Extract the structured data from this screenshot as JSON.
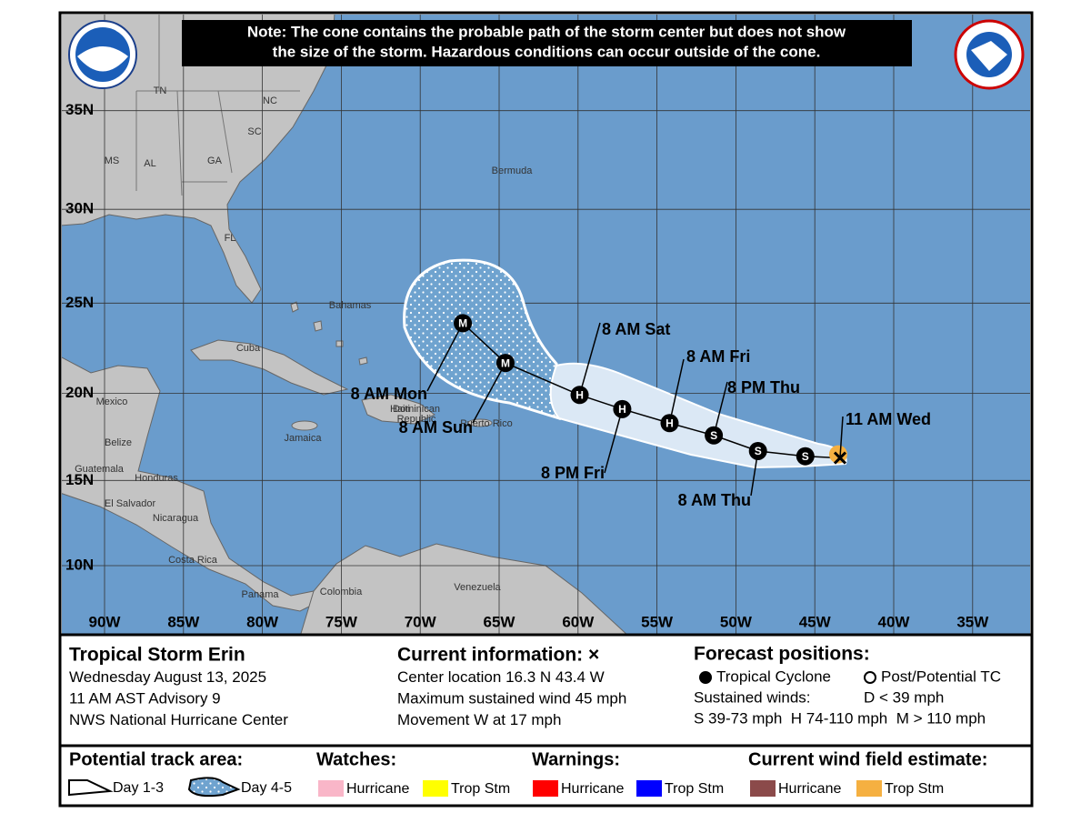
{
  "note": [
    "Note: The cone contains the probable path of the storm center but does not show",
    "the size of the storm. Hazardous conditions can occur outside of the cone."
  ],
  "map": {
    "lat_ticks": [
      {
        "value": 35,
        "label": "35N"
      },
      {
        "value": 30,
        "label": "30N"
      },
      {
        "value": 25,
        "label": "25N"
      },
      {
        "value": 20,
        "label": "20N"
      },
      {
        "value": 15,
        "label": "15N"
      },
      {
        "value": 10,
        "label": "10N"
      }
    ],
    "lon_ticks": [
      {
        "value": 90,
        "label": "90W"
      },
      {
        "value": 85,
        "label": "85W"
      },
      {
        "value": 80,
        "label": "80W"
      },
      {
        "value": 75,
        "label": "75W"
      },
      {
        "value": 70,
        "label": "70W"
      },
      {
        "value": 65,
        "label": "65W"
      },
      {
        "value": 60,
        "label": "60W"
      },
      {
        "value": 55,
        "label": "55W"
      },
      {
        "value": 50,
        "label": "50W"
      },
      {
        "value": 45,
        "label": "45W"
      },
      {
        "value": 40,
        "label": "40W"
      },
      {
        "value": 35,
        "label": "35W"
      }
    ],
    "places": [
      "TN",
      "NC",
      "SC",
      "MS",
      "AL",
      "GA",
      "FL",
      "Bermuda",
      "Bahamas",
      "Cuba",
      "Mexico",
      "Belize",
      "Jamaica",
      "Haiti",
      "Dominican",
      "Republic",
      "Puerto Rico",
      "Guatemala",
      "Honduras",
      "El Salvador",
      "Nicaragua",
      "Costa Rica",
      "Panama",
      "Colombia",
      "Venezuela"
    ]
  },
  "storm": {
    "current": {
      "label": "11 AM Wed",
      "lat": 16.3,
      "lon": 43.4
    },
    "forecast": [
      {
        "symbol": "S",
        "label": null,
        "lat": 16.4,
        "lon": 45.6
      },
      {
        "symbol": "S",
        "label": "8 AM Thu",
        "lat": 16.7,
        "lon": 48.6
      },
      {
        "symbol": "S",
        "label": "8 PM Thu",
        "lat": 17.6,
        "lon": 51.4
      },
      {
        "symbol": "H",
        "label": "8 AM Fri",
        "lat": 18.3,
        "lon": 54.2
      },
      {
        "symbol": "H",
        "label": "8 PM Fri",
        "lat": 19.1,
        "lon": 57.2
      },
      {
        "symbol": "H",
        "label": "8 AM Sat",
        "lat": 19.9,
        "lon": 59.9
      },
      {
        "symbol": "M",
        "label": "8 AM Sun",
        "lat": 21.7,
        "lon": 64.6
      },
      {
        "symbol": "M",
        "label": "8 AM Mon",
        "lat": 23.9,
        "lon": 67.3
      }
    ]
  },
  "info": {
    "storm": [
      "Tropical Storm Erin",
      "Wednesday August 13, 2025",
      "11 AM AST Advisory 9",
      "NWS National Hurricane Center"
    ],
    "current": [
      "Current information: ×",
      "Center location 16.3 N 43.4 W",
      "Maximum sustained wind 45 mph",
      "Movement W at 17 mph"
    ],
    "forecast": {
      "title": "Forecast positions:",
      "tc": "Tropical Cyclone",
      "ptc": "Post/Potential TC",
      "winds": "Sustained winds:",
      "d": "D < 39 mph",
      "scale": "S 39-73 mph  H 74-110 mph  M > 110 mph"
    }
  },
  "legend": {
    "track": {
      "title": "Potential track area:",
      "day13": "Day 1-3",
      "day45": "Day 4-5"
    },
    "watches": {
      "title": "Watches:",
      "items": [
        {
          "label": "Hurricane",
          "color": "#f9b6c8"
        },
        {
          "label": "Trop Stm",
          "color": "#ffff00"
        }
      ]
    },
    "warnings": {
      "title": "Warnings:",
      "items": [
        {
          "label": "Hurricane",
          "color": "#ff0000"
        },
        {
          "label": "Trop Stm",
          "color": "#0000ff"
        }
      ]
    },
    "wind": {
      "title": "Current wind field estimate:",
      "items": [
        {
          "label": "Hurricane",
          "color": "#8b4a4a"
        },
        {
          "label": "Trop Stm",
          "color": "#f5b041"
        }
      ]
    }
  }
}
